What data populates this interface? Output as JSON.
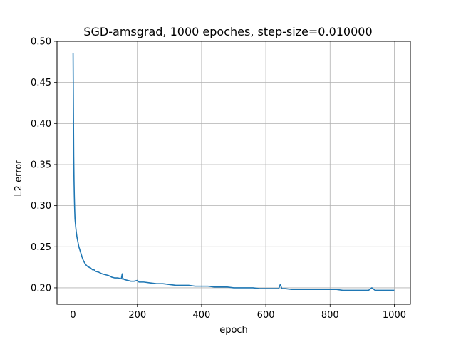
{
  "chart_data": {
    "type": "line",
    "title": "SGD-amsgrad, 1000 epoches, step-size=0.010000",
    "xlabel": "epoch",
    "ylabel": "L2 error",
    "xlim": [
      -50,
      1050
    ],
    "ylim": [
      0.18,
      0.5
    ],
    "xticks": [
      0,
      200,
      400,
      600,
      800,
      1000
    ],
    "yticks": [
      0.2,
      0.25,
      0.3,
      0.35,
      0.4,
      0.45,
      0.5
    ],
    "ytick_labels": [
      "0.20",
      "0.25",
      "0.30",
      "0.35",
      "0.40",
      "0.45",
      "0.50"
    ],
    "grid": true,
    "series": [
      {
        "color": "#1f77b4",
        "x": [
          0,
          1,
          2,
          3,
          4,
          5,
          6,
          8,
          10,
          12,
          15,
          18,
          22,
          26,
          30,
          35,
          40,
          45,
          50,
          55,
          60,
          65,
          70,
          80,
          90,
          100,
          110,
          120,
          130,
          140,
          150,
          153,
          155,
          157,
          160,
          170,
          180,
          190,
          200,
          205,
          210,
          220,
          240,
          260,
          280,
          300,
          320,
          340,
          360,
          380,
          400,
          420,
          440,
          460,
          480,
          500,
          520,
          540,
          560,
          580,
          600,
          620,
          640,
          645,
          650,
          660,
          680,
          700,
          720,
          740,
          760,
          780,
          800,
          820,
          840,
          860,
          880,
          900,
          920,
          930,
          940,
          960,
          980,
          1000
        ],
        "y": [
          0.486,
          0.42,
          0.36,
          0.33,
          0.31,
          0.295,
          0.284,
          0.275,
          0.268,
          0.262,
          0.256,
          0.25,
          0.245,
          0.24,
          0.235,
          0.231,
          0.228,
          0.226,
          0.225,
          0.224,
          0.222,
          0.222,
          0.22,
          0.219,
          0.217,
          0.216,
          0.215,
          0.213,
          0.212,
          0.212,
          0.211,
          0.217,
          0.21,
          0.211,
          0.21,
          0.209,
          0.208,
          0.208,
          0.209,
          0.207,
          0.207,
          0.207,
          0.206,
          0.205,
          0.205,
          0.204,
          0.203,
          0.203,
          0.203,
          0.202,
          0.202,
          0.202,
          0.201,
          0.201,
          0.201,
          0.2,
          0.2,
          0.2,
          0.2,
          0.199,
          0.199,
          0.199,
          0.199,
          0.204,
          0.199,
          0.199,
          0.198,
          0.198,
          0.198,
          0.198,
          0.198,
          0.198,
          0.198,
          0.198,
          0.197,
          0.197,
          0.197,
          0.197,
          0.197,
          0.2,
          0.197,
          0.197,
          0.197,
          0.197
        ]
      }
    ]
  }
}
